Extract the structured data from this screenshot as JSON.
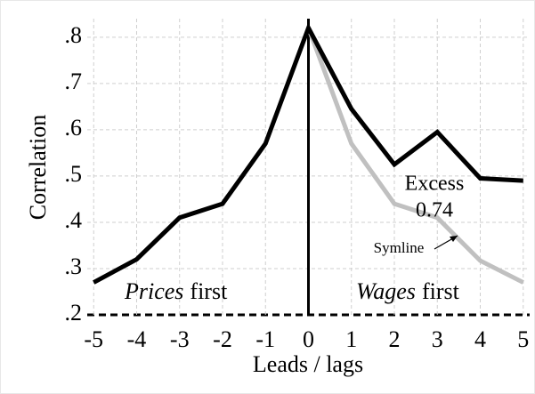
{
  "chart_data": {
    "type": "line",
    "y_label": "Correlation",
    "x_label": "Leads / lags",
    "x": [
      -5,
      -4,
      -3,
      -2,
      -1,
      0,
      1,
      2,
      3,
      4,
      5
    ],
    "series": [
      {
        "name": "Excess",
        "color": "#000000",
        "values": [
          0.27,
          0.32,
          0.41,
          0.44,
          0.57,
          0.82,
          0.645,
          0.525,
          0.595,
          0.495,
          0.49
        ]
      },
      {
        "name": "Symline",
        "color": "#c0c0c0",
        "values": [
          null,
          null,
          null,
          null,
          null,
          0.82,
          0.57,
          0.44,
          0.41,
          0.317,
          0.27
        ]
      }
    ],
    "xlim": [
      -5.15,
      5.15
    ],
    "xticks": [
      -5,
      -4,
      -3,
      -2,
      -1,
      0,
      1,
      2,
      3,
      4,
      5
    ],
    "ylim": [
      0.2,
      0.84
    ],
    "yticks": [
      {
        "value": 0.2,
        "label": ".2"
      },
      {
        "value": 0.3,
        "label": ".3"
      },
      {
        "value": 0.4,
        "label": ".4"
      },
      {
        "value": 0.5,
        "label": ".5"
      },
      {
        "value": 0.6,
        "label": ".6"
      },
      {
        "value": 0.7,
        "label": ".7"
      },
      {
        "value": 0.8,
        "label": ".8"
      }
    ],
    "grid": true,
    "annotations": {
      "excess_value": "0.74",
      "left_region": {
        "italic": "Prices",
        "rest": "first"
      },
      "right_region": {
        "italic": "Wages",
        "rest": "first"
      }
    }
  }
}
